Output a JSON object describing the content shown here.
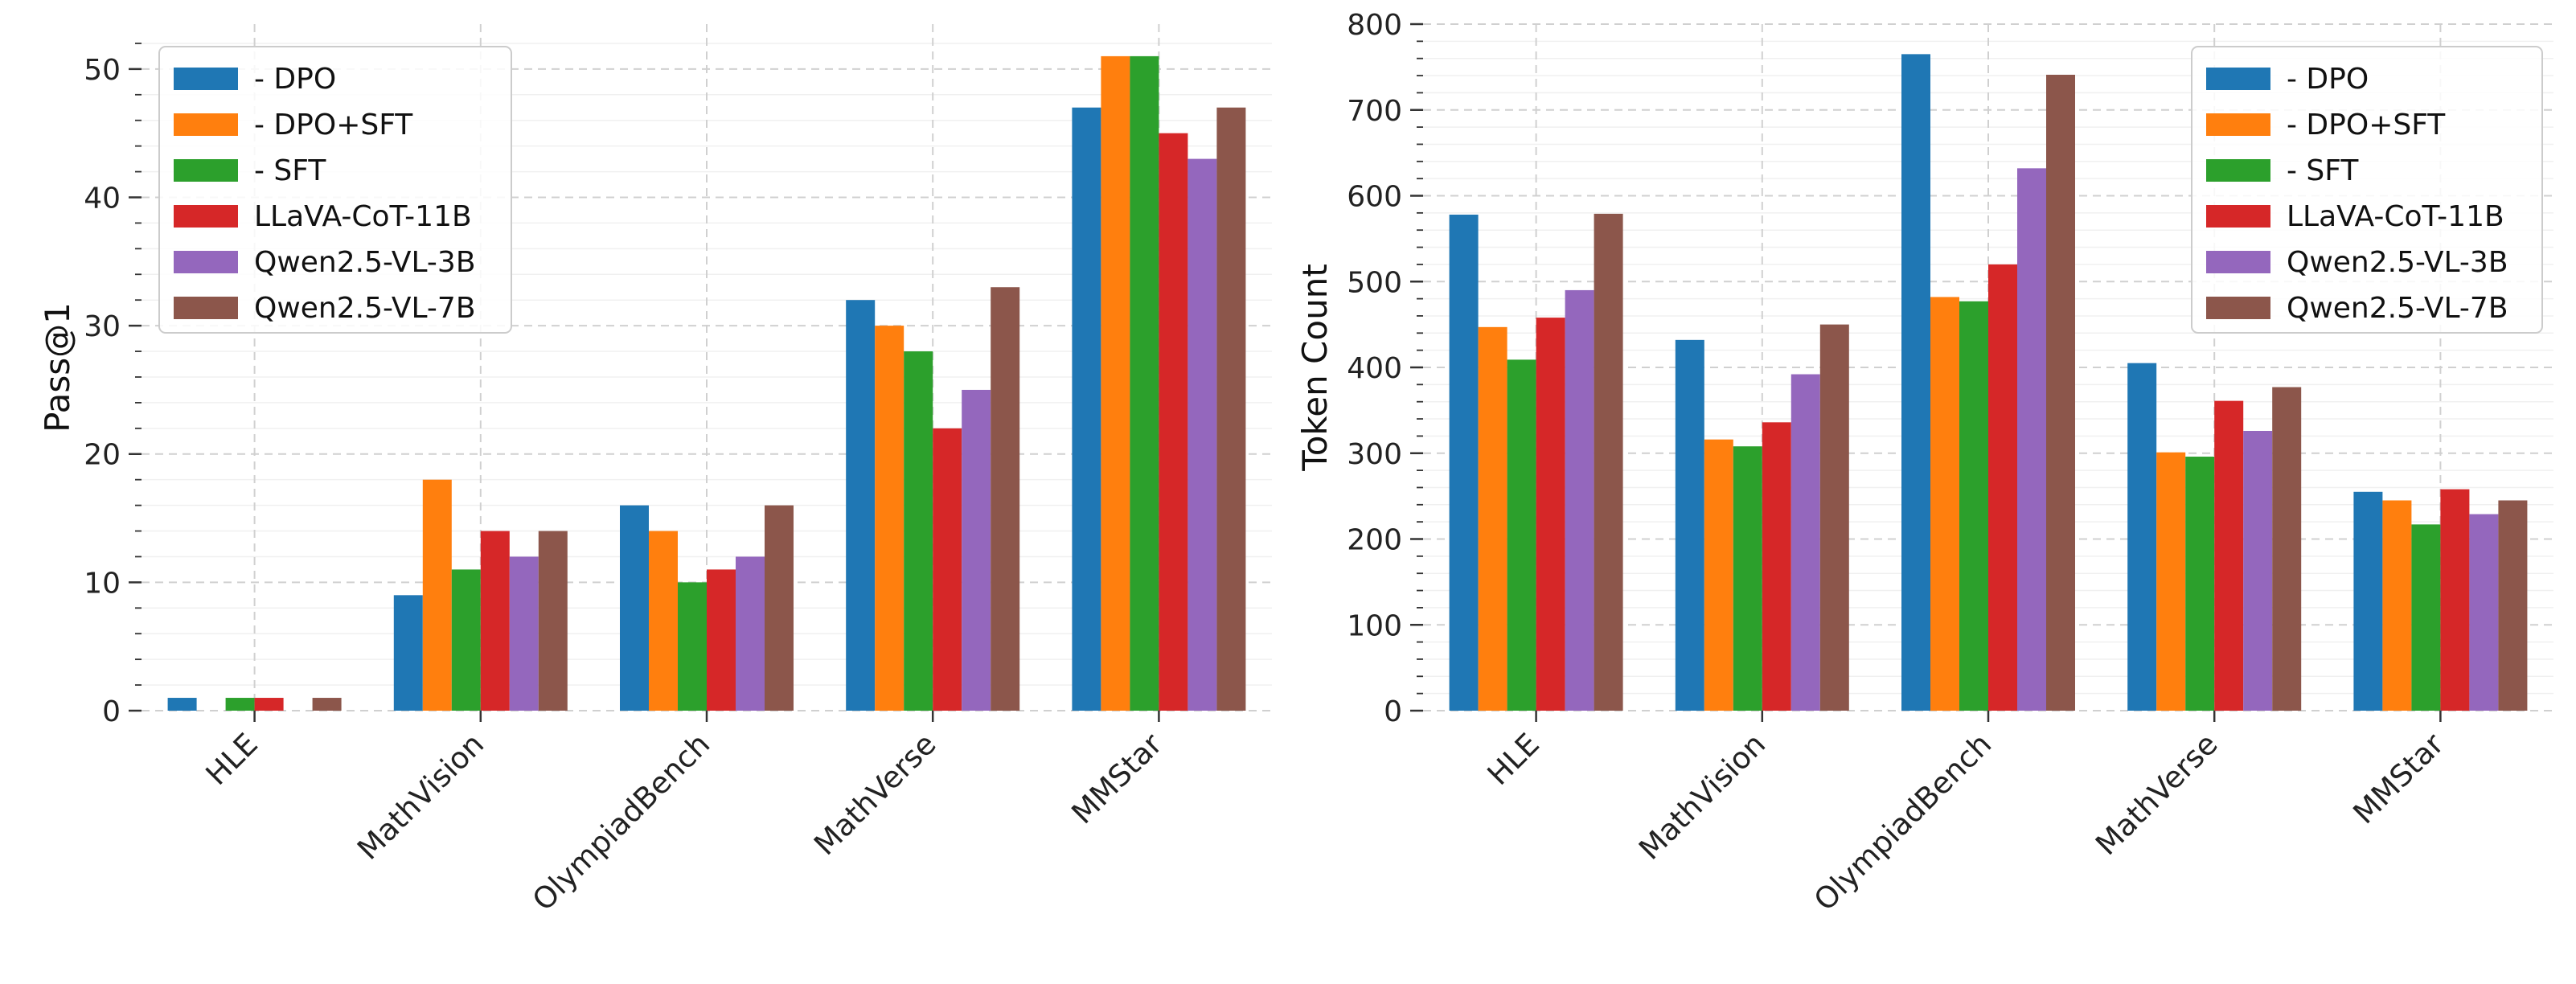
{
  "chart_data": [
    {
      "type": "bar",
      "title": "",
      "xlabel": "",
      "ylabel": "Pass@1",
      "ylim": [
        0,
        53.5
      ],
      "yticks": [
        0,
        10,
        20,
        30,
        40,
        50
      ],
      "grid": true,
      "legend_position": "top-left",
      "categories": [
        "HLE",
        "MathVision",
        "OlympiadBench",
        "MathVerse",
        "MMStar"
      ],
      "series": [
        {
          "name": "- DPO",
          "color": "#1f77b4",
          "values": [
            1,
            9,
            16,
            32,
            47
          ]
        },
        {
          "name": "- DPO+SFT",
          "color": "#ff7f0e",
          "values": [
            0,
            18,
            14,
            30,
            51
          ]
        },
        {
          "name": "- SFT",
          "color": "#2ca02c",
          "values": [
            1,
            11,
            10,
            28,
            51
          ]
        },
        {
          "name": "LLaVA-CoT-11B",
          "color": "#d62728",
          "values": [
            1,
            14,
            11,
            22,
            45
          ]
        },
        {
          "name": "Qwen2.5-VL-3B",
          "color": "#9467bd",
          "values": [
            0,
            12,
            12,
            25,
            43
          ]
        },
        {
          "name": "Qwen2.5-VL-7B",
          "color": "#8c564b",
          "values": [
            1,
            14,
            16,
            33,
            47
          ]
        }
      ]
    },
    {
      "type": "bar",
      "title": "",
      "xlabel": "",
      "ylabel": "Token Count",
      "ylim": [
        0,
        800
      ],
      "yticks": [
        0,
        100,
        200,
        300,
        400,
        500,
        600,
        700,
        800
      ],
      "grid": true,
      "legend_position": "top-right",
      "categories": [
        "HLE",
        "MathVision",
        "OlympiadBench",
        "MathVerse",
        "MMStar"
      ],
      "series": [
        {
          "name": "- DPO",
          "color": "#1f77b4",
          "values": [
            578,
            432,
            765,
            405,
            255
          ]
        },
        {
          "name": "- DPO+SFT",
          "color": "#ff7f0e",
          "values": [
            447,
            316,
            482,
            301,
            245
          ]
        },
        {
          "name": "- SFT",
          "color": "#2ca02c",
          "values": [
            409,
            308,
            477,
            296,
            217
          ]
        },
        {
          "name": "LLaVA-CoT-11B",
          "color": "#d62728",
          "values": [
            458,
            336,
            520,
            361,
            258
          ]
        },
        {
          "name": "Qwen2.5-VL-3B",
          "color": "#9467bd",
          "values": [
            490,
            392,
            632,
            326,
            229
          ]
        },
        {
          "name": "Qwen2.5-VL-7B",
          "color": "#8c564b",
          "values": [
            579,
            450,
            741,
            377,
            245
          ]
        }
      ]
    }
  ]
}
